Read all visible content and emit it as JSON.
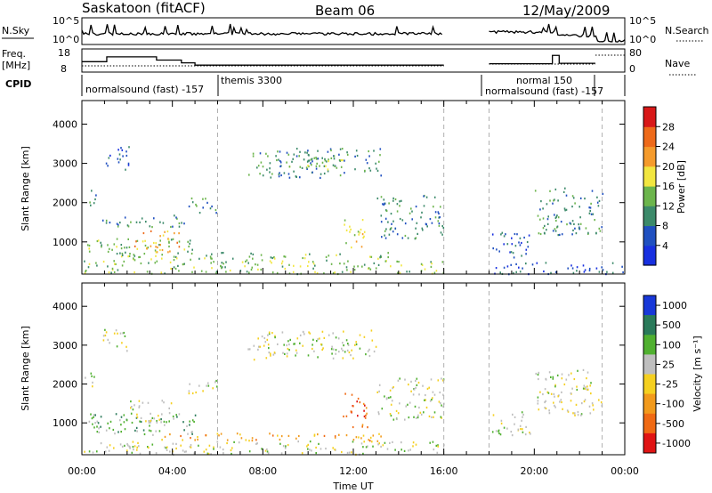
{
  "header": {
    "station": "Saskatoon (fitACF)",
    "beam": "Beam 06",
    "date": "12/May/2009"
  },
  "top_panels": {
    "nsky_label": "N.Sky",
    "nsky_ticks": [
      "10^5",
      "10^0"
    ],
    "nsearch_label": "N.Search",
    "nsearch_ticks": [
      "10^5",
      "10^0"
    ],
    "freq_label_1": "Freq.",
    "freq_label_2": "[MHz]",
    "freq_ticks": [
      "18",
      "8"
    ],
    "nave_label": "Nave",
    "nave_ticks": [
      "80",
      "0"
    ],
    "cpid_label": "CPID",
    "cpid_entries": [
      {
        "text": "normalsound (fast)  -157",
        "start": 0.0
      },
      {
        "text": "themis 3300",
        "start": 6.0
      },
      {
        "text": "normal 150",
        "start": 18.0
      },
      {
        "text": "normalsound (fast)  -157",
        "start": 18.0
      }
    ],
    "freq_series": [
      {
        "t0": 0.0,
        "t1": 1.1,
        "f": 12.5
      },
      {
        "t0": 1.1,
        "t1": 3.3,
        "f": 14.6
      },
      {
        "t0": 3.3,
        "t1": 4.4,
        "f": 13.2
      },
      {
        "t0": 4.4,
        "t1": 5.0,
        "f": 12.0
      },
      {
        "t0": 5.0,
        "t1": 16.0,
        "f": 11.0
      },
      {
        "t0": 18.0,
        "t1": 20.8,
        "f": 11.6
      },
      {
        "t0": 20.8,
        "t1": 21.1,
        "f": 15.2
      },
      {
        "t0": 21.1,
        "t1": 22.7,
        "f": 11.8
      }
    ]
  },
  "chart_data": [
    {
      "type": "heatmap",
      "parameter": "Power",
      "ylabel": "Slant Range [km]",
      "xlabel": "",
      "x_range_hours": [
        0,
        24
      ],
      "ylim": [
        180,
        4600
      ],
      "y_ticks": [
        1000,
        2000,
        3000,
        4000
      ],
      "colorbar_label": "Power [dB]",
      "colorbar_ticks": [
        "4",
        "8",
        "12",
        "16",
        "20",
        "24",
        "28"
      ],
      "colorbar_colors": [
        "#1830e0",
        "#2050c0",
        "#3c8a6a",
        "#6cb54c",
        "#f2e640",
        "#f59b2c",
        "#ee6a1a",
        "#d81818"
      ],
      "data_gaps_hours": [
        [
          16.0,
          18.0
        ]
      ],
      "scatter_regions": [
        {
          "t0": 0.0,
          "t1": 0.6,
          "r0": 1950,
          "r1": 2350,
          "level": 2
        },
        {
          "t0": 0.9,
          "t1": 2.1,
          "r0": 2850,
          "r1": 3450,
          "level": 1
        },
        {
          "t0": 0.2,
          "t1": 5.2,
          "r0": 700,
          "r1": 1100,
          "level": 3
        },
        {
          "t0": 2.3,
          "t1": 4.3,
          "r0": 750,
          "r1": 1300,
          "level": 5
        },
        {
          "t0": 4.6,
          "t1": 6.0,
          "r0": 1750,
          "r1": 2150,
          "level": 2
        },
        {
          "t0": 0.8,
          "t1": 4.8,
          "r0": 1400,
          "r1": 1700,
          "level": 2
        },
        {
          "t0": 1.5,
          "t1": 13.6,
          "r0": 550,
          "r1": 750,
          "level": 3
        },
        {
          "t0": 7.3,
          "t1": 13.2,
          "r0": 2650,
          "r1": 3400,
          "level": 2
        },
        {
          "t0": 9.0,
          "t1": 11.5,
          "r0": 2850,
          "r1": 3300,
          "level": 3
        },
        {
          "t0": 13.0,
          "t1": 16.0,
          "r0": 1100,
          "r1": 2200,
          "level": 2
        },
        {
          "t0": 11.5,
          "t1": 12.5,
          "r0": 800,
          "r1": 1600,
          "level": 4
        },
        {
          "t0": 0.0,
          "t1": 16.0,
          "r0": 200,
          "r1": 550,
          "level": 3
        },
        {
          "t0": 18.1,
          "t1": 19.8,
          "r0": 600,
          "r1": 1300,
          "level": 1
        },
        {
          "t0": 20.0,
          "t1": 23.0,
          "r0": 1200,
          "r1": 2400,
          "level": 2
        },
        {
          "t0": 18.0,
          "t1": 24.0,
          "r0": 200,
          "r1": 500,
          "level": 1
        }
      ]
    },
    {
      "type": "heatmap",
      "parameter": "Velocity",
      "ylabel": "Slant Range [km]",
      "xlabel": "Time UT",
      "x_range_hours": [
        0,
        24
      ],
      "x_ticks": [
        "00:00",
        "04:00",
        "08:00",
        "12:00",
        "16:00",
        "20:00",
        "00:00"
      ],
      "ylim": [
        180,
        4600
      ],
      "y_ticks": [
        1000,
        2000,
        3000,
        4000
      ],
      "colorbar_label": "Velocity [m s⁻¹]",
      "colorbar_ticks": [
        "1000",
        "500",
        "100",
        "25",
        "-25",
        "-100",
        "-500",
        "-1000"
      ],
      "colorbar_colors": [
        "#1838d8",
        "#2a7a5a",
        "#50b030",
        "#bebebe",
        "#f5d020",
        "#f29a1c",
        "#f06a14",
        "#e01414"
      ],
      "data_gaps_hours": [
        [
          16.0,
          18.0
        ]
      ],
      "scatter_regions": [
        {
          "t0": 0.0,
          "t1": 0.6,
          "r0": 1950,
          "r1": 2350,
          "level": 3
        },
        {
          "t0": 0.9,
          "t1": 2.1,
          "r0": 2850,
          "r1": 3450,
          "level": 3
        },
        {
          "t0": 0.2,
          "t1": 5.2,
          "r0": 700,
          "r1": 1300,
          "level": 2
        },
        {
          "t0": 2.0,
          "t1": 4.0,
          "r0": 1000,
          "r1": 1600,
          "level": 3
        },
        {
          "t0": 4.6,
          "t1": 6.0,
          "r0": 1750,
          "r1": 2150,
          "level": 3
        },
        {
          "t0": 3.5,
          "t1": 13.6,
          "r0": 550,
          "r1": 750,
          "level": 5
        },
        {
          "t0": 7.3,
          "t1": 13.2,
          "r0": 2650,
          "r1": 3400,
          "level": 3
        },
        {
          "t0": 13.0,
          "t1": 16.0,
          "r0": 1100,
          "r1": 2200,
          "level": 3
        },
        {
          "t0": 11.5,
          "t1": 12.6,
          "r0": 900,
          "r1": 1800,
          "level": 6
        },
        {
          "t0": 0.0,
          "t1": 16.0,
          "r0": 200,
          "r1": 550,
          "level": 3
        },
        {
          "t0": 18.1,
          "t1": 19.8,
          "r0": 600,
          "r1": 1300,
          "level": 3
        },
        {
          "t0": 20.0,
          "t1": 23.0,
          "r0": 1200,
          "r1": 2400,
          "level": 3
        }
      ]
    }
  ]
}
